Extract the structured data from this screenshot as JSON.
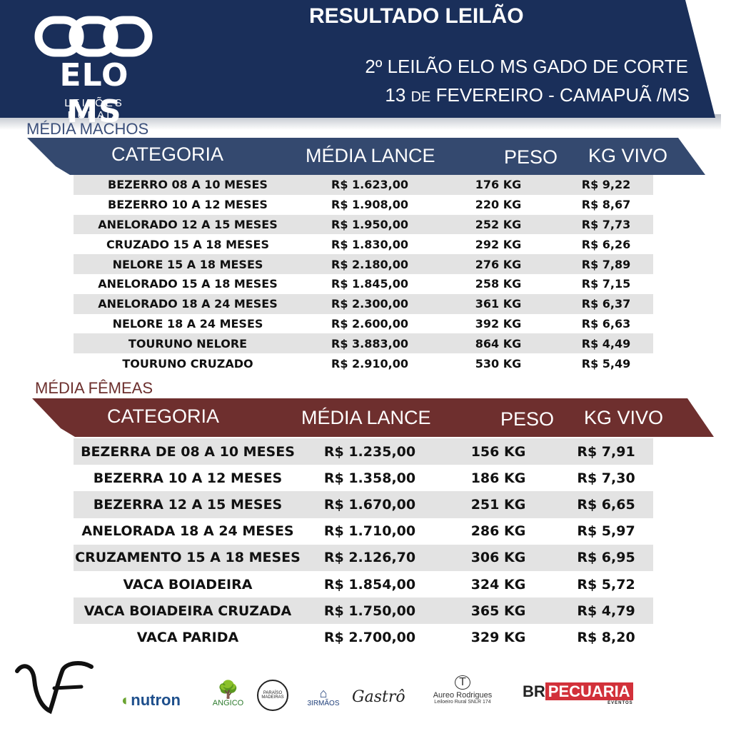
{
  "header": {
    "logo_name": "ELO MS",
    "logo_sub": "LEILÕES RURAIS",
    "title": "RESULTADO LEILÃO",
    "event_name": "2º LEILÃO ELO MS GADO DE CORTE",
    "event_date_day": "13",
    "event_date_de": "DE",
    "event_date_rest": "FEVEREIRO - CAMAPUÃ /MS"
  },
  "columns": {
    "categoria": "CATEGORIA",
    "media_lance": "MÉDIA LANCE",
    "peso": "PESO",
    "kg_vivo": "KG VIVO"
  },
  "machos": {
    "title": "MÉDIA MACHOS",
    "rows": [
      {
        "categoria": "BEZERRO 08 A 10 MESES",
        "media_lance": "R$ 1.623,00",
        "peso": "176 KG",
        "kg_vivo": "R$ 9,22"
      },
      {
        "categoria": "BEZERRO 10 A 12 MESES",
        "media_lance": "R$ 1.908,00",
        "peso": "220 KG",
        "kg_vivo": "R$ 8,67"
      },
      {
        "categoria": "ANELORADO 12 A 15 MESES",
        "media_lance": "R$ 1.950,00",
        "peso": "252 KG",
        "kg_vivo": "R$ 7,73"
      },
      {
        "categoria": "CRUZADO 15 A 18 MESES",
        "media_lance": "R$ 1.830,00",
        "peso": "292 KG",
        "kg_vivo": "R$ 6,26"
      },
      {
        "categoria": "NELORE 15 A 18 MESES",
        "media_lance": "R$ 2.180,00",
        "peso": "276 KG",
        "kg_vivo": "R$ 7,89"
      },
      {
        "categoria": "ANELORADO 15 A 18 MESES",
        "media_lance": "R$ 1.845,00",
        "peso": "258 KG",
        "kg_vivo": "R$ 7,15"
      },
      {
        "categoria": "ANELORADO 18 A 24 MESES",
        "media_lance": "R$ 2.300,00",
        "peso": "361 KG",
        "kg_vivo": "R$ 6,37"
      },
      {
        "categoria": "NELORE 18 A 24 MESES",
        "media_lance": "R$ 2.600,00",
        "peso": "392 KG",
        "kg_vivo": "R$ 6,63"
      },
      {
        "categoria": "TOURUNO NELORE",
        "media_lance": "R$ 3.883,00",
        "peso": "864 KG",
        "kg_vivo": "R$ 4,49"
      },
      {
        "categoria": "TOURUNO CRUZADO",
        "media_lance": "R$ 2.910,00",
        "peso": "530 KG",
        "kg_vivo": "R$ 5,49"
      }
    ]
  },
  "femeas": {
    "title": "MÉDIA FÊMEAS",
    "rows": [
      {
        "categoria": "BEZERRA DE 08 A 10 MESES",
        "media_lance": "R$ 1.235,00",
        "peso": "156 KG",
        "kg_vivo": "R$ 7,91"
      },
      {
        "categoria": "BEZERRA 10 A 12 MESES",
        "media_lance": "R$ 1.358,00",
        "peso": "186 KG",
        "kg_vivo": "R$ 7,30"
      },
      {
        "categoria": "BEZERRA 12 A 15 MESES",
        "media_lance": "R$ 1.670,00",
        "peso": "251 KG",
        "kg_vivo": "R$ 6,65"
      },
      {
        "categoria": "ANELORADA 18 A 24 MESES",
        "media_lance": "R$ 1.710,00",
        "peso": "286 KG",
        "kg_vivo": "R$ 5,97"
      },
      {
        "categoria": "CRUZAMENTO 15 A 18 MESES",
        "media_lance": "R$ 2.126,70",
        "peso": "306 KG",
        "kg_vivo": "R$ 6,95"
      },
      {
        "categoria": "VACA BOIADEIRA",
        "media_lance": "R$ 1.854,00",
        "peso": "324 KG",
        "kg_vivo": "R$ 5,72"
      },
      {
        "categoria": "VACA BOIADEIRA CRUZADA",
        "media_lance": "R$ 1.750,00",
        "peso": "365 KG",
        "kg_vivo": "R$ 4,79"
      },
      {
        "categoria": "VACA PARIDA",
        "media_lance": "R$ 2.700,00",
        "peso": "329 KG",
        "kg_vivo": "R$ 8,20"
      }
    ]
  },
  "sponsors": {
    "nutron": "nutron",
    "angico": "ANGICO",
    "paraiso": "PARAÍSO MADEIRAS",
    "tres_irmaos": "3IRMÃOS",
    "gastro": "Gastrô",
    "aureo": "Aureo Rodrigues",
    "aureo_sub": "Leiloeiro Rural SNLR 174",
    "brpecuaria_br": "BR",
    "brpecuaria_name": "PECUARIA",
    "brpecuaria_sub": "EVENTOS"
  },
  "colors": {
    "header_navy": "#1a2f5a",
    "machos_bar": "#34496f",
    "femeas_bar": "#6e2f2e",
    "row_alt": "#e3e3e3"
  }
}
